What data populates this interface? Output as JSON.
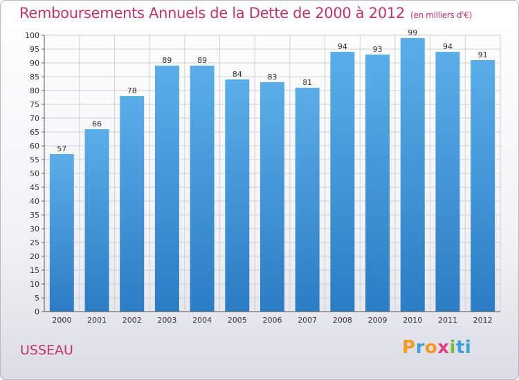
{
  "header": {
    "title": "Remboursements Annuels de la Dette de 2000 à 2012",
    "unit": "(en milliers d'€)"
  },
  "footer": {
    "place": "USSEAU",
    "logo": [
      "P",
      "r",
      "o",
      "x",
      "i",
      "ti"
    ]
  },
  "colors": {
    "title": "#c2336b",
    "bar_top": "#5aaee8",
    "bar_bottom": "#2b7dc4",
    "grid": "#d0d0d0"
  },
  "chart_data": {
    "type": "bar",
    "title": "Remboursements Annuels de la Dette de 2000 à 2012",
    "categories": [
      "2000",
      "2001",
      "2002",
      "2003",
      "2004",
      "2005",
      "2006",
      "2007",
      "2008",
      "2009",
      "2010",
      "2011",
      "2012"
    ],
    "values": [
      57,
      66,
      78,
      89,
      89,
      84,
      83,
      81,
      94,
      93,
      99,
      94,
      91
    ],
    "ylim": [
      0,
      100
    ],
    "yticks": [
      0,
      5,
      10,
      15,
      20,
      25,
      30,
      35,
      40,
      45,
      50,
      55,
      60,
      65,
      70,
      75,
      80,
      85,
      90,
      95,
      100
    ],
    "grid": true,
    "xlabel": "",
    "ylabel": ""
  }
}
